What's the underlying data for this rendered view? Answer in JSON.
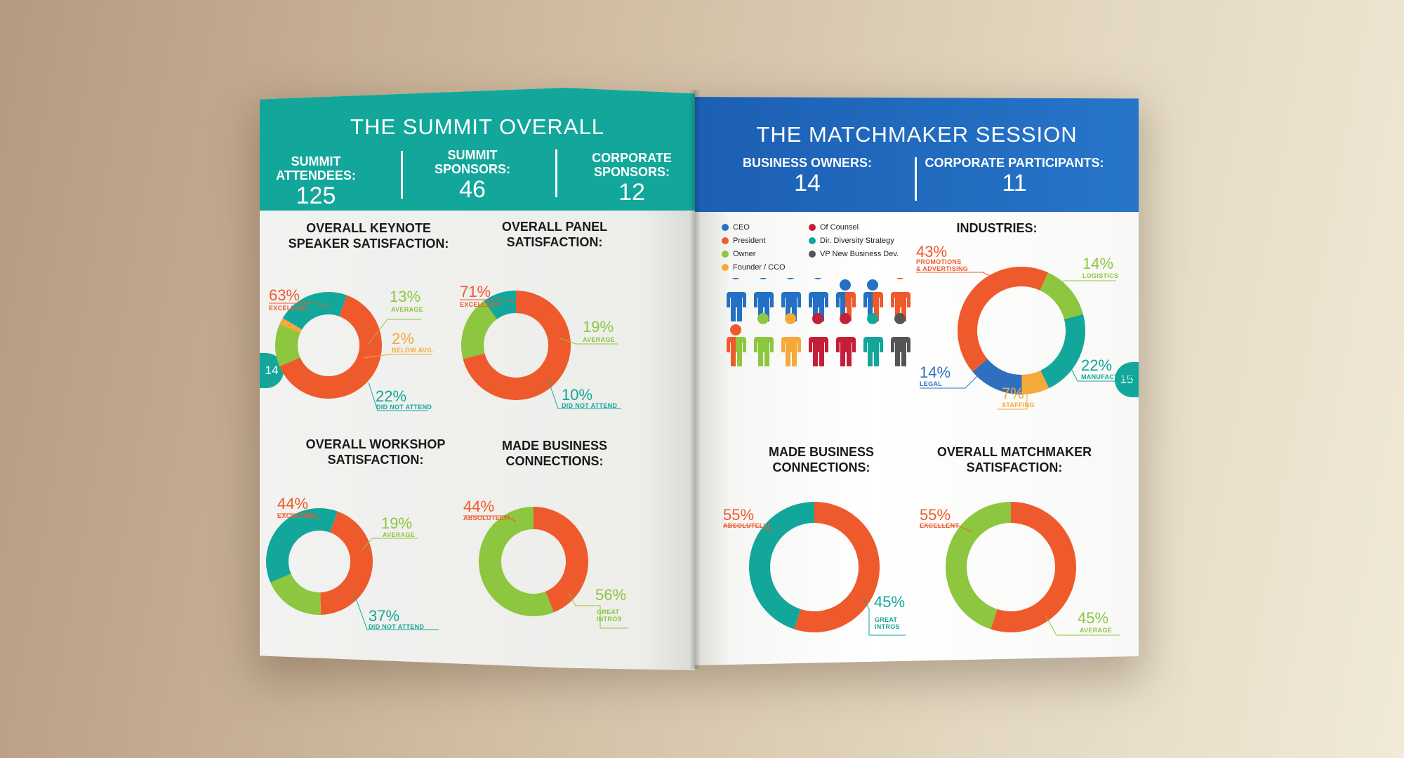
{
  "colors": {
    "teal": "#12a79a",
    "blue": "#2370c4",
    "orange_red": "#ef5a2c",
    "green": "#8dc63f",
    "yellow": "#f5a93a",
    "dark_red": "#c41e3a",
    "gray": "#555555",
    "legal_blue": "#2e6fc0"
  },
  "left": {
    "title": "THE SUMMIT OVERALL",
    "page_number": "14",
    "stats": [
      {
        "label": "SUMMIT ATTENDEES:",
        "value": "125"
      },
      {
        "label": "SUMMIT SPONSORS:",
        "value": "46"
      },
      {
        "label": "CORPORATE SPONSORS:",
        "value": "12"
      }
    ]
  },
  "right": {
    "title": "THE MATCHMAKER SESSION",
    "page_number": "15",
    "stats": [
      {
        "label": "BUSINESS OWNERS:",
        "value": "14"
      },
      {
        "label": "CORPORATE PARTICIPANTS:",
        "value": "11"
      }
    ],
    "legend": [
      {
        "label": "CEO",
        "color": "#2370c4"
      },
      {
        "label": "President",
        "color": "#ef5a2c"
      },
      {
        "label": "Owner",
        "color": "#8dc63f"
      },
      {
        "label": "Founder / CCO",
        "color": "#f5a93a"
      },
      {
        "label": "Of Counsel",
        "color": "#c41e3a"
      },
      {
        "label": "Dir. Diversity Strategy",
        "color": "#12a79a"
      },
      {
        "label": "VP New Business Dev.",
        "color": "#555555"
      }
    ],
    "people": [
      [
        "#2370c4"
      ],
      [
        "#2370c4"
      ],
      [
        "#2370c4"
      ],
      [
        "#2370c4"
      ],
      [
        "#2370c4",
        "#ef5a2c"
      ],
      [
        "#2370c4",
        "#ef5a2c"
      ],
      [
        "#ef5a2c"
      ],
      [
        "#ef5a2c",
        "#8dc63f"
      ],
      [
        "#8dc63f"
      ],
      [
        "#f5a93a"
      ],
      [
        "#c41e3a"
      ],
      [
        "#c41e3a"
      ],
      [
        "#12a79a"
      ],
      [
        "#555555"
      ]
    ]
  },
  "chart_data": [
    {
      "id": "keynote",
      "type": "pie",
      "title": "OVERALL KEYNOTE SPEAKER SATISFACTION:",
      "slices": [
        {
          "label": "EXCELLENT",
          "value": 63,
          "pct": "63%",
          "color": "#ef5a2c"
        },
        {
          "label": "AVERAGE",
          "value": 13,
          "pct": "13%",
          "color": "#8dc63f"
        },
        {
          "label": "BELOW AVG.",
          "value": 2,
          "pct": "2%",
          "color": "#f5a93a"
        },
        {
          "label": "DID NOT ATTEND",
          "value": 22,
          "pct": "22%",
          "color": "#12a79a"
        }
      ]
    },
    {
      "id": "panel",
      "type": "pie",
      "title": "OVERALL PANEL SATISFACTION:",
      "slices": [
        {
          "label": "EXCELLENT",
          "value": 71,
          "pct": "71%",
          "color": "#ef5a2c"
        },
        {
          "label": "AVERAGE",
          "value": 19,
          "pct": "19%",
          "color": "#8dc63f"
        },
        {
          "label": "DID NOT ATTEND",
          "value": 10,
          "pct": "10%",
          "color": "#12a79a"
        }
      ]
    },
    {
      "id": "workshop",
      "type": "pie",
      "title": "OVERALL WORKSHOP SATISFACTION:",
      "slices": [
        {
          "label": "EXCELLENT",
          "value": 44,
          "pct": "44%",
          "color": "#ef5a2c"
        },
        {
          "label": "AVERAGE",
          "value": 19,
          "pct": "19%",
          "color": "#8dc63f"
        },
        {
          "label": "DID NOT ATTEND",
          "value": 37,
          "pct": "37%",
          "color": "#12a79a"
        }
      ]
    },
    {
      "id": "summit_connections",
      "type": "pie",
      "title": "MADE BUSINESS CONNECTIONS:",
      "slices": [
        {
          "label": "ABSOLUTELY!",
          "value": 44,
          "pct": "44%",
          "color": "#ef5a2c"
        },
        {
          "label": "GREAT INTROS",
          "value": 56,
          "pct": "56%",
          "color": "#8dc63f"
        }
      ]
    },
    {
      "id": "industries",
      "type": "pie",
      "title": "INDUSTRIES:",
      "slices": [
        {
          "label": "PROMOTIONS & ADVERTISING",
          "value": 43,
          "pct": "43%",
          "color": "#ef5a2c"
        },
        {
          "label": "LOGISTICS",
          "value": 14,
          "pct": "14%",
          "color": "#8dc63f"
        },
        {
          "label": "MANUFACTURING",
          "value": 22,
          "pct": "22%",
          "color": "#12a79a"
        },
        {
          "label": "STAFFING",
          "value": 7,
          "pct": "7%",
          "color": "#f5a93a"
        },
        {
          "label": "LEGAL",
          "value": 14,
          "pct": "14%",
          "color": "#2e6fc0"
        }
      ]
    },
    {
      "id": "mm_connections",
      "type": "pie",
      "title": "MADE BUSINESS CONNECTIONS:",
      "slices": [
        {
          "label": "ABSOLUTELY!",
          "value": 55,
          "pct": "55%",
          "color": "#ef5a2c"
        },
        {
          "label": "GREAT INTROS",
          "value": 45,
          "pct": "45%",
          "color": "#12a79a"
        }
      ]
    },
    {
      "id": "mm_satisfaction",
      "type": "pie",
      "title": "OVERALL MATCHMAKER SATISFACTION:",
      "slices": [
        {
          "label": "EXCELLENT",
          "value": 55,
          "pct": "55%",
          "color": "#ef5a2c"
        },
        {
          "label": "AVERAGE",
          "value": 45,
          "pct": "45%",
          "color": "#8dc63f"
        }
      ]
    }
  ]
}
